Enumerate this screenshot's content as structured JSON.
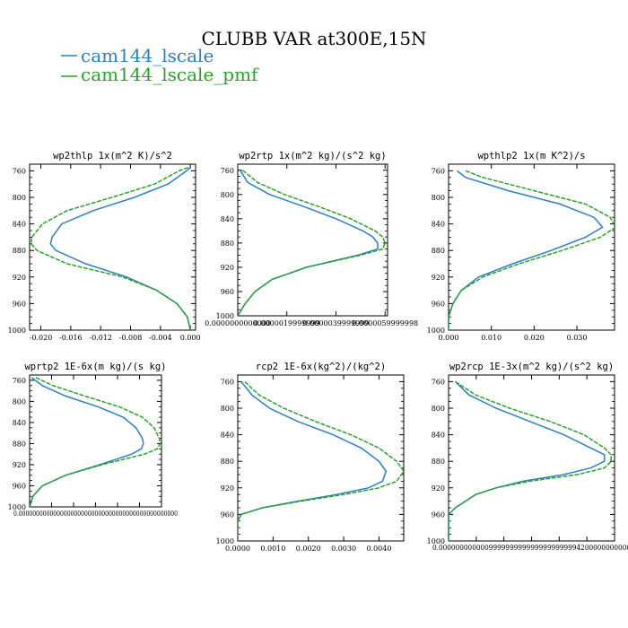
{
  "figure": {
    "title": "CLUBB VAR at300E,15N",
    "legend": [
      {
        "name": "cam144_lscale",
        "color": "#2f7fbd",
        "dashed": false
      },
      {
        "name": "cam144_lscale_pmf",
        "color": "#2ca02c",
        "dashed": true
      }
    ]
  },
  "chart_data": [
    {
      "type": "line",
      "title": "wp2thlp   1x(m^2 K)/s^2",
      "xlim": [
        -0.0215,
        0.0007
      ],
      "ylim": [
        1000,
        750
      ],
      "yticks": [
        "760",
        "800",
        "840",
        "880",
        "920",
        "960",
        "1000"
      ],
      "ytick_values": [
        760,
        800,
        840,
        880,
        920,
        960,
        1000
      ],
      "xticks": [
        "-0.020",
        "-0.016",
        "-0.012",
        "-0.008",
        "-0.004",
        "0.000"
      ],
      "xtick_values": [
        -0.02,
        -0.016,
        -0.012,
        -0.008,
        -0.004,
        0.0
      ],
      "y": [
        755,
        760,
        780,
        800,
        820,
        840,
        860,
        870,
        880,
        900,
        920,
        940,
        960,
        980,
        1000
      ],
      "series": [
        {
          "name": "cam144_lscale",
          "x": [
            0.0,
            -0.0005,
            -0.003,
            -0.0075,
            -0.013,
            -0.0172,
            -0.0185,
            -0.0187,
            -0.018,
            -0.014,
            -0.0085,
            -0.0045,
            -0.0018,
            -0.0004,
            0.0
          ]
        },
        {
          "name": "cam144_lscale_pmf",
          "x": [
            -0.0003,
            -0.0015,
            -0.0048,
            -0.0105,
            -0.0165,
            -0.0198,
            -0.0212,
            -0.0213,
            -0.0205,
            -0.0165,
            -0.009,
            -0.0045,
            -0.0018,
            -0.0004,
            0.0
          ]
        }
      ]
    },
    {
      "type": "line",
      "title": "wp2rtp   1x(m^2 kg)/(s^2 kg)",
      "xlim": [
        0,
        6.1e-06
      ],
      "ylim": [
        1000,
        750
      ],
      "yticks": [
        "760",
        "800",
        "840",
        "880",
        "920",
        "960",
        "1000"
      ],
      "ytick_values": [
        760,
        800,
        840,
        880,
        920,
        960,
        1000
      ],
      "xticks": [
        "0.0000000000000",
        "0.0000019999999",
        "0.0000039999999",
        "0.0000059999998"
      ],
      "xtick_values": [
        0,
        1.9999999e-06,
        3.9999999e-06,
        5.9999998e-06
      ],
      "y": [
        760,
        780,
        800,
        820,
        840,
        860,
        870,
        880,
        890,
        900,
        920,
        940,
        960,
        980,
        1000
      ],
      "series": [
        {
          "name": "cam144_lscale",
          "x": [
            1e-07,
            4e-07,
            1.3e-06,
            2.7e-06,
            4e-06,
            5.1e-06,
            5.5e-06,
            5.7e-06,
            5.7e-06,
            4.9e-06,
            2.8e-06,
            1.4e-06,
            7e-07,
            3e-07,
            0.0
          ]
        },
        {
          "name": "cam144_lscale_pmf",
          "x": [
            2e-07,
            8e-07,
            1.9e-06,
            3.3e-06,
            4.6e-06,
            5.6e-06,
            5.9e-06,
            6e-06,
            5.9e-06,
            5e-06,
            2.8e-06,
            1.4e-06,
            7e-07,
            3e-07,
            0.0
          ]
        }
      ]
    },
    {
      "type": "line",
      "title": "wpthlp2   1x(m K^2)/s",
      "xlim": [
        0,
        0.0388
      ],
      "ylim": [
        1000,
        750
      ],
      "yticks": [
        "760",
        "800",
        "840",
        "880",
        "920",
        "960",
        "1000"
      ],
      "ytick_values": [
        760,
        800,
        840,
        880,
        920,
        960,
        1000
      ],
      "xticks": [
        "0.000",
        "0.010",
        "0.020",
        "0.030"
      ],
      "xtick_values": [
        0.0,
        0.01,
        0.02,
        0.03
      ],
      "y": [
        760,
        770,
        790,
        810,
        830,
        845,
        860,
        880,
        900,
        920,
        940,
        960,
        980,
        1000
      ],
      "series": [
        {
          "name": "cam144_lscale",
          "x": [
            0.002,
            0.004,
            0.014,
            0.026,
            0.034,
            0.036,
            0.032,
            0.024,
            0.015,
            0.007,
            0.003,
            0.001,
            0.0,
            0.0
          ]
        },
        {
          "name": "cam144_lscale_pmf",
          "x": [
            0.004,
            0.008,
            0.02,
            0.032,
            0.0378,
            0.039,
            0.0355,
            0.0265,
            0.0165,
            0.008,
            0.003,
            0.001,
            0.0,
            0.0
          ]
        }
      ]
    },
    {
      "type": "line",
      "title": "wprtp2   1E-6x(m kg)/(s kg)",
      "xlim": [
        0,
        0.62
      ],
      "ylim": [
        1000,
        750
      ],
      "yticks": [
        "760",
        "800",
        "840",
        "880",
        "920",
        "960",
        "1000"
      ],
      "ytick_values": [
        760,
        800,
        840,
        880,
        920,
        960,
        1000
      ],
      "xticks": [],
      "xtick_values": [],
      "xtick_text": "0.0000000000000000000000000000000000000000000000",
      "y": [
        755,
        770,
        790,
        810,
        830,
        850,
        870,
        880,
        890,
        900,
        920,
        940,
        960,
        980,
        1000
      ],
      "series": [
        {
          "name": "cam144_lscale",
          "x": [
            0.01,
            0.06,
            0.17,
            0.32,
            0.44,
            0.5,
            0.53,
            0.535,
            0.525,
            0.48,
            0.33,
            0.17,
            0.06,
            0.015,
            0.0
          ]
        },
        {
          "name": "cam144_lscale_pmf",
          "x": [
            0.03,
            0.11,
            0.26,
            0.42,
            0.53,
            0.585,
            0.61,
            0.615,
            0.6,
            0.54,
            0.34,
            0.17,
            0.06,
            0.015,
            0.0
          ]
        }
      ]
    },
    {
      "type": "line",
      "title": "rcp2   1E-6x(kg^2)/(kg^2)",
      "xlim": [
        0,
        0.0047
      ],
      "ylim": [
        1000,
        750
      ],
      "yticks": [
        "760",
        "800",
        "840",
        "880",
        "920",
        "960",
        "1000"
      ],
      "ytick_values": [
        760,
        800,
        840,
        880,
        920,
        960,
        1000
      ],
      "xticks": [
        "0.0000",
        "0.0010",
        "0.0020",
        "0.0030",
        "0.0040"
      ],
      "xtick_values": [
        0.0,
        0.001,
        0.002,
        0.003,
        0.004
      ],
      "y": [
        760,
        780,
        800,
        820,
        840,
        860,
        880,
        895,
        910,
        920,
        930,
        940,
        950,
        960,
        970,
        1000
      ],
      "series": [
        {
          "name": "cam144_lscale",
          "x": [
            0.0001,
            0.0004,
            0.0009,
            0.0017,
            0.0027,
            0.0035,
            0.004,
            0.0042,
            0.0041,
            0.0037,
            0.0028,
            0.0017,
            0.0007,
            0.0001,
            0.0,
            0.0
          ]
        },
        {
          "name": "cam144_lscale_pmf",
          "x": [
            0.0002,
            0.0006,
            0.0013,
            0.0022,
            0.0032,
            0.004,
            0.0045,
            0.0047,
            0.0045,
            0.004,
            0.003,
            0.0018,
            0.0007,
            0.0001,
            0.0,
            0.0
          ]
        }
      ]
    },
    {
      "type": "line",
      "title": "wp2rcp   1E-3x(m^2 kg)/(s^2 kg)",
      "xlim": [
        0,
        0.00245
      ],
      "ylim": [
        1000,
        750
      ],
      "yticks": [
        "760",
        "800",
        "840",
        "880",
        "920",
        "960",
        "1000"
      ],
      "ytick_values": [
        760,
        800,
        840,
        880,
        920,
        960,
        1000
      ],
      "xticks": [],
      "xtick_values": [],
      "xtick_text": "0.0000000000009999999999999999999994200000000000",
      "y": [
        760,
        780,
        800,
        820,
        840,
        860,
        870,
        880,
        890,
        900,
        910,
        920,
        930,
        950,
        960,
        1000
      ],
      "series": [
        {
          "name": "cam144_lscale",
          "x": [
            0.0001,
            0.0003,
            0.0007,
            0.0012,
            0.0017,
            0.0021,
            0.0023,
            0.0023,
            0.0021,
            0.0017,
            0.0011,
            0.0007,
            0.0004,
            0.0001,
            0.0,
            0.0
          ]
        },
        {
          "name": "cam144_lscale_pmf",
          "x": [
            0.0001,
            0.0004,
            0.0009,
            0.0015,
            0.002,
            0.0023,
            0.0024,
            0.0024,
            0.0023,
            0.0019,
            0.0012,
            0.0007,
            0.0004,
            0.0001,
            0.0,
            0.0
          ]
        }
      ]
    }
  ]
}
